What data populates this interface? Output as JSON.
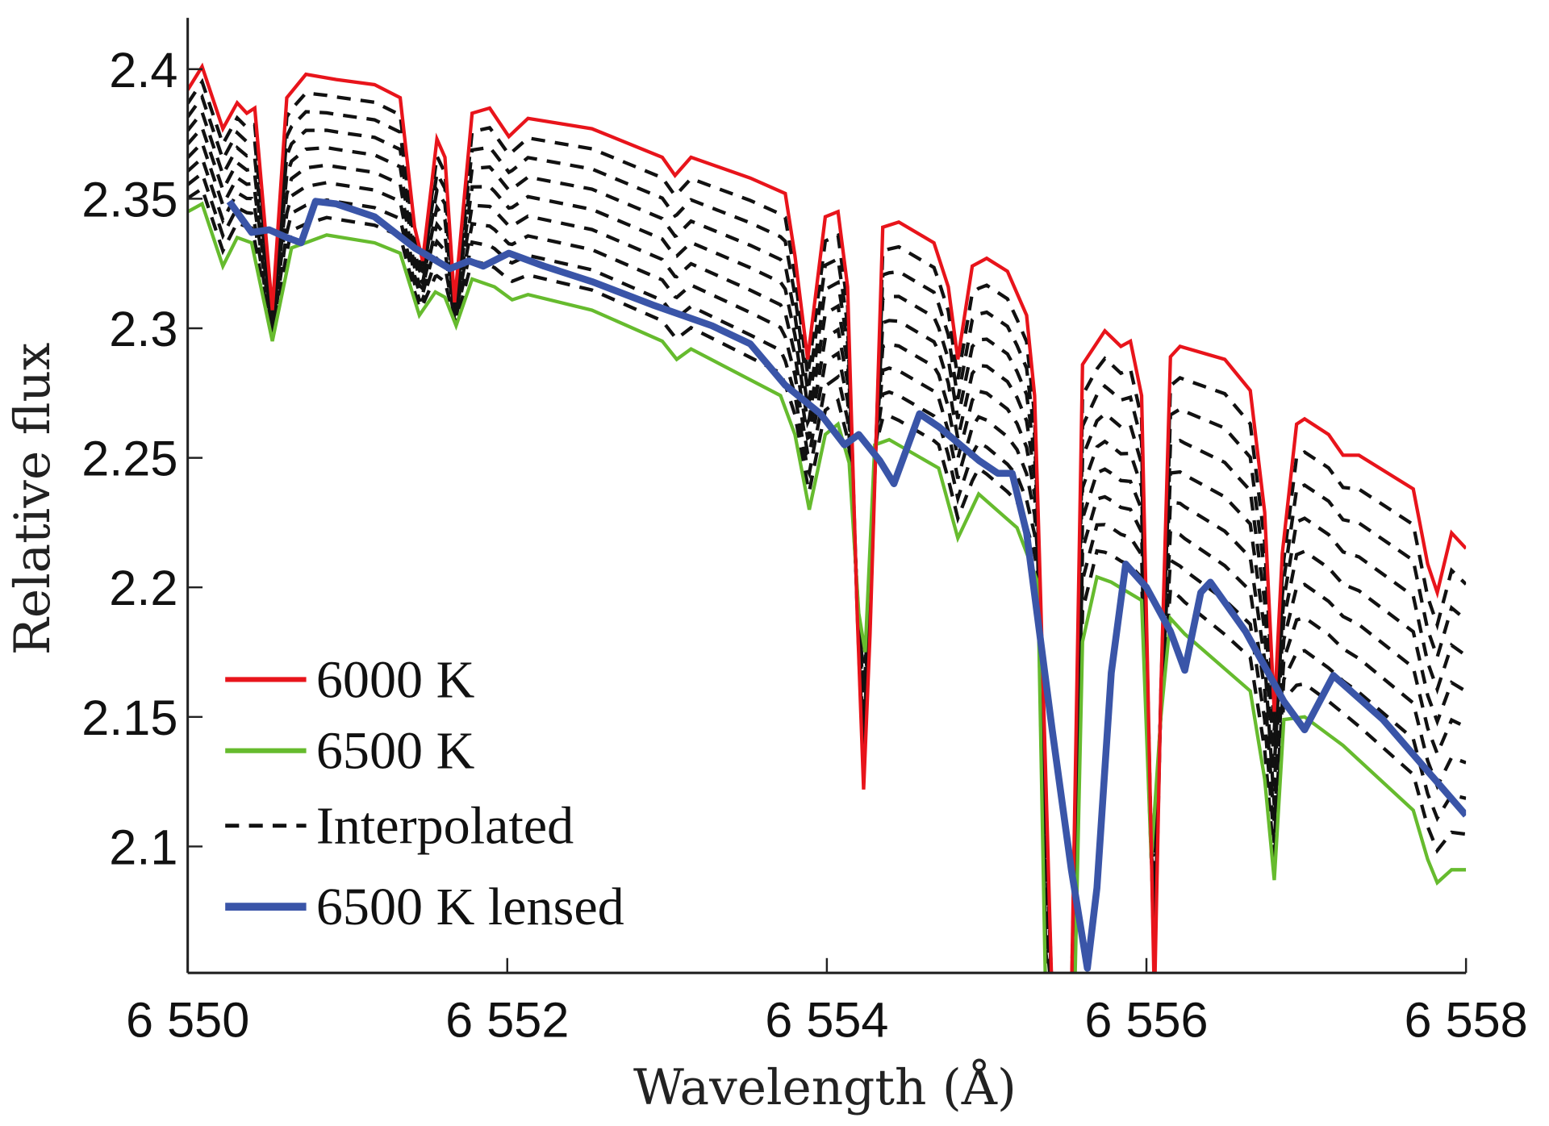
{
  "chart_data": {
    "type": "line",
    "xlabel": "Wavelength (Å)",
    "ylabel": "Relative flux",
    "xlim": [
      6550,
      6558
    ],
    "ylim": [
      2.051,
      2.42
    ],
    "xticks": [
      6550,
      6552,
      6554,
      6556,
      6558
    ],
    "xtick_labels": [
      "6 550",
      "6 552",
      "6 554",
      "6 556",
      "6 558"
    ],
    "yticks": [
      2.1,
      2.15,
      2.2,
      2.25,
      2.3,
      2.35,
      2.4
    ],
    "ytick_labels": [
      "2.1",
      "2.15",
      "2.2",
      "2.25",
      "2.3",
      "2.35",
      "2.4"
    ],
    "grid": false,
    "legend_position": "bottom-left",
    "series": [
      {
        "name": "6000 K",
        "color": "#e8141b",
        "style": "solid",
        "points": [
          [
            6550.0,
            2.392
          ],
          [
            6550.09,
            2.401
          ],
          [
            6550.22,
            2.377
          ],
          [
            6550.31,
            2.387
          ],
          [
            6550.37,
            2.383
          ],
          [
            6550.42,
            2.385
          ],
          [
            6550.53,
            2.307
          ],
          [
            6550.62,
            2.389
          ],
          [
            6550.74,
            2.398
          ],
          [
            6550.93,
            2.396
          ],
          [
            6551.17,
            2.394
          ],
          [
            6551.33,
            2.389
          ],
          [
            6551.42,
            2.339
          ],
          [
            6551.47,
            2.326
          ],
          [
            6551.56,
            2.373
          ],
          [
            6551.61,
            2.366
          ],
          [
            6551.67,
            2.31
          ],
          [
            6551.78,
            2.383
          ],
          [
            6551.89,
            2.385
          ],
          [
            6552.01,
            2.374
          ],
          [
            6552.13,
            2.381
          ],
          [
            6552.53,
            2.377
          ],
          [
            6552.97,
            2.366
          ],
          [
            6553.05,
            2.359
          ],
          [
            6553.15,
            2.366
          ],
          [
            6553.52,
            2.358
          ],
          [
            6553.74,
            2.352
          ],
          [
            6553.8,
            2.328
          ],
          [
            6553.88,
            2.288
          ],
          [
            6553.99,
            2.343
          ],
          [
            6554.07,
            2.345
          ],
          [
            6554.13,
            2.316
          ],
          [
            6554.19,
            2.19
          ],
          [
            6554.23,
            2.122
          ],
          [
            6554.27,
            2.182
          ],
          [
            6554.35,
            2.339
          ],
          [
            6554.45,
            2.341
          ],
          [
            6554.67,
            2.333
          ],
          [
            6554.76,
            2.316
          ],
          [
            6554.82,
            2.288
          ],
          [
            6554.91,
            2.324
          ],
          [
            6555.0,
            2.327
          ],
          [
            6555.13,
            2.322
          ],
          [
            6555.25,
            2.305
          ],
          [
            6555.3,
            2.274
          ],
          [
            6555.33,
            2.213
          ],
          [
            6555.41,
            2.04
          ],
          [
            6555.53,
            2.04
          ],
          [
            6555.6,
            2.286
          ],
          [
            6555.74,
            2.299
          ],
          [
            6555.84,
            2.293
          ],
          [
            6555.9,
            2.295
          ],
          [
            6555.97,
            2.274
          ],
          [
            6556.01,
            2.16
          ],
          [
            6556.05,
            2.04
          ],
          [
            6556.09,
            2.16
          ],
          [
            6556.15,
            2.289
          ],
          [
            6556.21,
            2.293
          ],
          [
            6556.49,
            2.288
          ],
          [
            6556.65,
            2.276
          ],
          [
            6556.74,
            2.229
          ],
          [
            6556.8,
            2.152
          ],
          [
            6556.85,
            2.213
          ],
          [
            6556.94,
            2.263
          ],
          [
            6556.99,
            2.265
          ],
          [
            6557.14,
            2.259
          ],
          [
            6557.23,
            2.251
          ],
          [
            6557.33,
            2.251
          ],
          [
            6557.67,
            2.238
          ],
          [
            6557.76,
            2.209
          ],
          [
            6557.82,
            2.198
          ],
          [
            6557.91,
            2.221
          ],
          [
            6558.0,
            2.215
          ]
        ]
      },
      {
        "name": "6500 K",
        "color": "#66bb2e",
        "style": "solid",
        "points": [
          [
            6550.0,
            2.345
          ],
          [
            6550.09,
            2.348
          ],
          [
            6550.22,
            2.324
          ],
          [
            6550.31,
            2.335
          ],
          [
            6550.4,
            2.333
          ],
          [
            6550.53,
            2.295
          ],
          [
            6550.65,
            2.331
          ],
          [
            6550.87,
            2.336
          ],
          [
            6551.17,
            2.333
          ],
          [
            6551.33,
            2.329
          ],
          [
            6551.45,
            2.305
          ],
          [
            6551.55,
            2.314
          ],
          [
            6551.61,
            2.312
          ],
          [
            6551.68,
            2.301
          ],
          [
            6551.78,
            2.319
          ],
          [
            6551.92,
            2.316
          ],
          [
            6552.03,
            2.311
          ],
          [
            6552.13,
            2.313
          ],
          [
            6552.53,
            2.307
          ],
          [
            6552.97,
            2.295
          ],
          [
            6553.06,
            2.288
          ],
          [
            6553.15,
            2.292
          ],
          [
            6553.71,
            2.274
          ],
          [
            6553.8,
            2.259
          ],
          [
            6553.89,
            2.23
          ],
          [
            6553.99,
            2.259
          ],
          [
            6554.07,
            2.263
          ],
          [
            6554.14,
            2.248
          ],
          [
            6554.2,
            2.19
          ],
          [
            6554.24,
            2.175
          ],
          [
            6554.3,
            2.255
          ],
          [
            6554.39,
            2.257
          ],
          [
            6554.7,
            2.246
          ],
          [
            6554.82,
            2.219
          ],
          [
            6554.95,
            2.236
          ],
          [
            6555.19,
            2.223
          ],
          [
            6555.32,
            2.202
          ],
          [
            6555.37,
            2.04
          ],
          [
            6555.55,
            2.04
          ],
          [
            6555.6,
            2.179
          ],
          [
            6555.69,
            2.204
          ],
          [
            6555.78,
            2.202
          ],
          [
            6555.97,
            2.195
          ],
          [
            6556.03,
            2.095
          ],
          [
            6556.09,
            2.15
          ],
          [
            6556.15,
            2.188
          ],
          [
            6556.24,
            2.182
          ],
          [
            6556.65,
            2.16
          ],
          [
            6556.74,
            2.126
          ],
          [
            6556.8,
            2.087
          ],
          [
            6556.86,
            2.149
          ],
          [
            6556.99,
            2.15
          ],
          [
            6557.23,
            2.139
          ],
          [
            6557.67,
            2.114
          ],
          [
            6557.76,
            2.095
          ],
          [
            6557.82,
            2.086
          ],
          [
            6557.91,
            2.091
          ],
          [
            6558.0,
            2.091
          ]
        ]
      },
      {
        "name": "Interpolated",
        "color": "#111111",
        "style": "dashed"
      },
      {
        "name": "6500 K lensed",
        "color": "#3a55a8",
        "style": "solid-thick",
        "points": [
          [
            6550.26,
            2.349
          ],
          [
            6550.4,
            2.337
          ],
          [
            6550.51,
            2.338
          ],
          [
            6550.62,
            2.335
          ],
          [
            6550.71,
            2.333
          ],
          [
            6550.8,
            2.349
          ],
          [
            6550.93,
            2.348
          ],
          [
            6551.17,
            2.343
          ],
          [
            6551.42,
            2.331
          ],
          [
            6551.64,
            2.323
          ],
          [
            6551.76,
            2.326
          ],
          [
            6551.85,
            2.324
          ],
          [
            6552.01,
            2.329
          ],
          [
            6552.23,
            2.324
          ],
          [
            6552.53,
            2.318
          ],
          [
            6552.91,
            2.309
          ],
          [
            6553.28,
            2.301
          ],
          [
            6553.52,
            2.294
          ],
          [
            6553.74,
            2.278
          ],
          [
            6553.96,
            2.267
          ],
          [
            6554.11,
            2.255
          ],
          [
            6554.2,
            2.259
          ],
          [
            6554.33,
            2.249
          ],
          [
            6554.42,
            2.24
          ],
          [
            6554.58,
            2.267
          ],
          [
            6554.7,
            2.262
          ],
          [
            6554.95,
            2.249
          ],
          [
            6555.07,
            2.244
          ],
          [
            6555.16,
            2.244
          ],
          [
            6555.25,
            2.221
          ],
          [
            6555.41,
            2.145
          ],
          [
            6555.53,
            2.091
          ],
          [
            6555.63,
            2.053
          ],
          [
            6555.69,
            2.084
          ],
          [
            6555.78,
            2.167
          ],
          [
            6555.87,
            2.209
          ],
          [
            6556.0,
            2.2
          ],
          [
            6556.15,
            2.183
          ],
          [
            6556.24,
            2.168
          ],
          [
            6556.34,
            2.198
          ],
          [
            6556.4,
            2.202
          ],
          [
            6556.62,
            2.183
          ],
          [
            6556.86,
            2.156
          ],
          [
            6556.99,
            2.145
          ],
          [
            6557.17,
            2.166
          ],
          [
            6557.48,
            2.149
          ],
          [
            6558.0,
            2.112
          ]
        ]
      }
    ]
  }
}
